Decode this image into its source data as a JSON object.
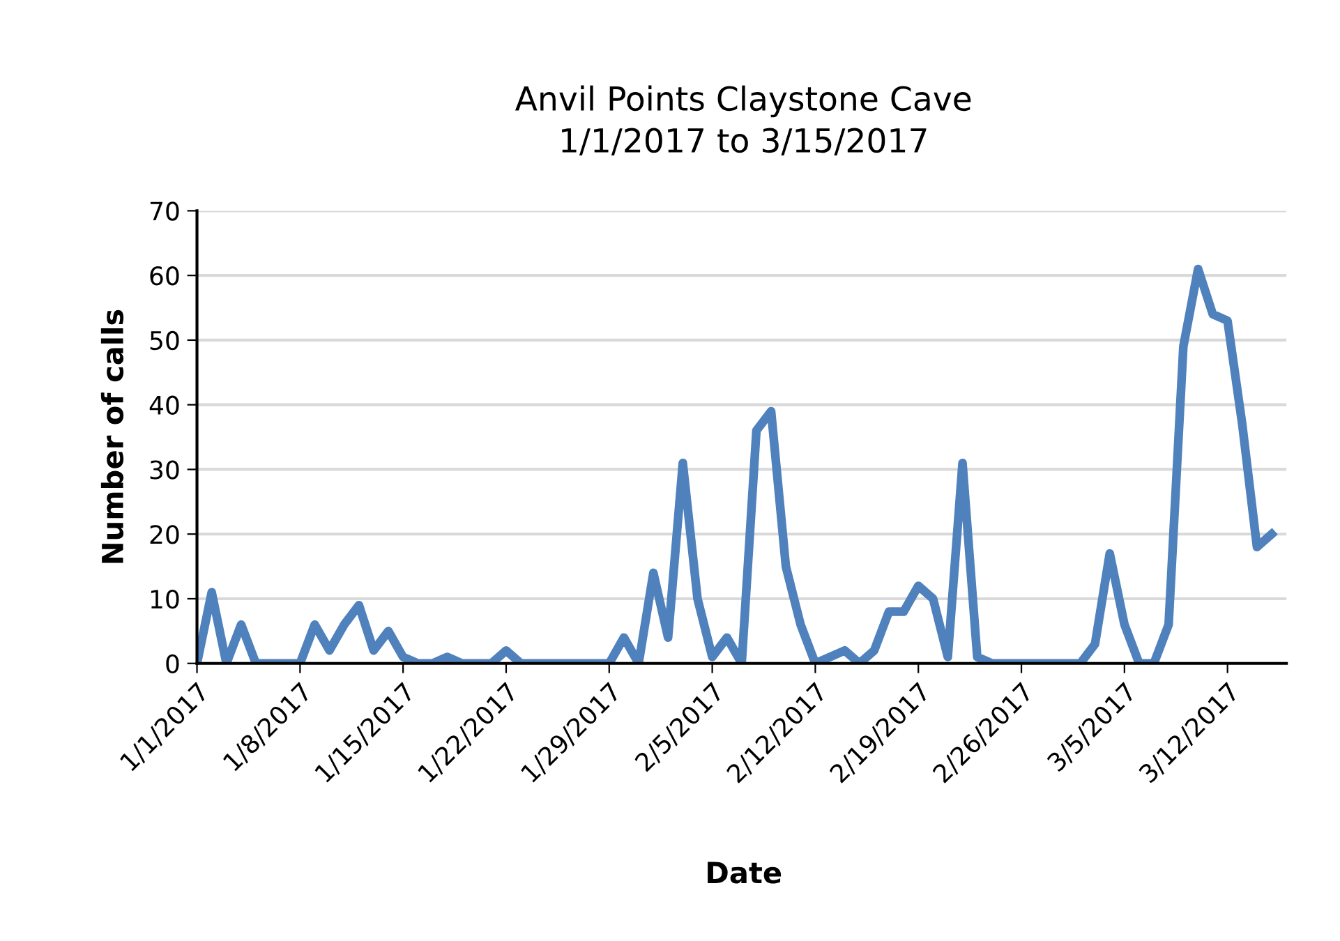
{
  "chart_data": {
    "type": "line",
    "title": "Anvil Points Claystone Cave\n1/1/2017 to 3/15/2017",
    "xlabel": "Date",
    "ylabel": "Number of calls",
    "x": [
      "2017-01-01",
      "2017-01-02",
      "2017-01-03",
      "2017-01-04",
      "2017-01-05",
      "2017-01-06",
      "2017-01-07",
      "2017-01-08",
      "2017-01-09",
      "2017-01-10",
      "2017-01-11",
      "2017-01-12",
      "2017-01-13",
      "2017-01-14",
      "2017-01-15",
      "2017-01-16",
      "2017-01-17",
      "2017-01-18",
      "2017-01-19",
      "2017-01-20",
      "2017-01-21",
      "2017-01-22",
      "2017-01-23",
      "2017-01-24",
      "2017-01-25",
      "2017-01-26",
      "2017-01-27",
      "2017-01-28",
      "2017-01-29",
      "2017-01-30",
      "2017-01-31",
      "2017-02-01",
      "2017-02-02",
      "2017-02-03",
      "2017-02-04",
      "2017-02-05",
      "2017-02-06",
      "2017-02-07",
      "2017-02-08",
      "2017-02-09",
      "2017-02-10",
      "2017-02-11",
      "2017-02-12",
      "2017-02-13",
      "2017-02-14",
      "2017-02-15",
      "2017-02-16",
      "2017-02-17",
      "2017-02-18",
      "2017-02-19",
      "2017-02-20",
      "2017-02-21",
      "2017-02-22",
      "2017-02-23",
      "2017-02-24",
      "2017-02-25",
      "2017-02-26",
      "2017-02-27",
      "2017-02-28",
      "2017-03-01",
      "2017-03-02",
      "2017-03-03",
      "2017-03-04",
      "2017-03-05",
      "2017-03-06",
      "2017-03-07",
      "2017-03-08",
      "2017-03-09",
      "2017-03-10",
      "2017-03-11",
      "2017-03-12",
      "2017-03-13",
      "2017-03-14",
      "2017-03-15"
    ],
    "series": [
      {
        "color": "#4f81bd",
        "values": [
          0,
          11,
          0,
          6,
          0,
          0,
          0,
          0,
          6,
          2,
          6,
          9,
          2,
          5,
          1,
          0,
          0,
          1,
          0,
          0,
          0,
          2,
          0,
          0,
          0,
          0,
          0,
          0,
          0,
          4,
          0,
          14,
          4,
          31,
          10,
          1,
          4,
          0,
          36,
          39,
          15,
          6,
          0,
          1,
          2,
          0,
          2,
          8,
          8,
          12,
          10,
          1,
          31,
          1,
          0,
          0,
          0,
          0,
          0,
          0,
          0,
          3,
          17,
          6,
          0,
          0,
          6,
          49,
          61,
          54,
          53,
          37,
          18,
          20
        ]
      }
    ],
    "xlim": [
      "2017-01-01",
      "2017-03-16"
    ],
    "xticks": [
      {
        "value": "2017-01-01",
        "label": "1/1/2017"
      },
      {
        "value": "2017-01-08",
        "label": "1/8/2017"
      },
      {
        "value": "2017-01-15",
        "label": "1/15/2017"
      },
      {
        "value": "2017-01-22",
        "label": "1/22/2017"
      },
      {
        "value": "2017-01-29",
        "label": "1/29/2017"
      },
      {
        "value": "2017-02-05",
        "label": "2/5/2017"
      },
      {
        "value": "2017-02-12",
        "label": "2/12/2017"
      },
      {
        "value": "2017-02-19",
        "label": "2/19/2017"
      },
      {
        "value": "2017-02-26",
        "label": "2/26/2017"
      },
      {
        "value": "2017-03-05",
        "label": "3/5/2017"
      },
      {
        "value": "2017-03-12",
        "label": "3/12/2017"
      }
    ],
    "ylim": [
      0,
      70
    ],
    "yticks": [
      0,
      10,
      20,
      30,
      40,
      50,
      60,
      70
    ],
    "grid": "y",
    "marker": "none",
    "line_style": "solid"
  }
}
